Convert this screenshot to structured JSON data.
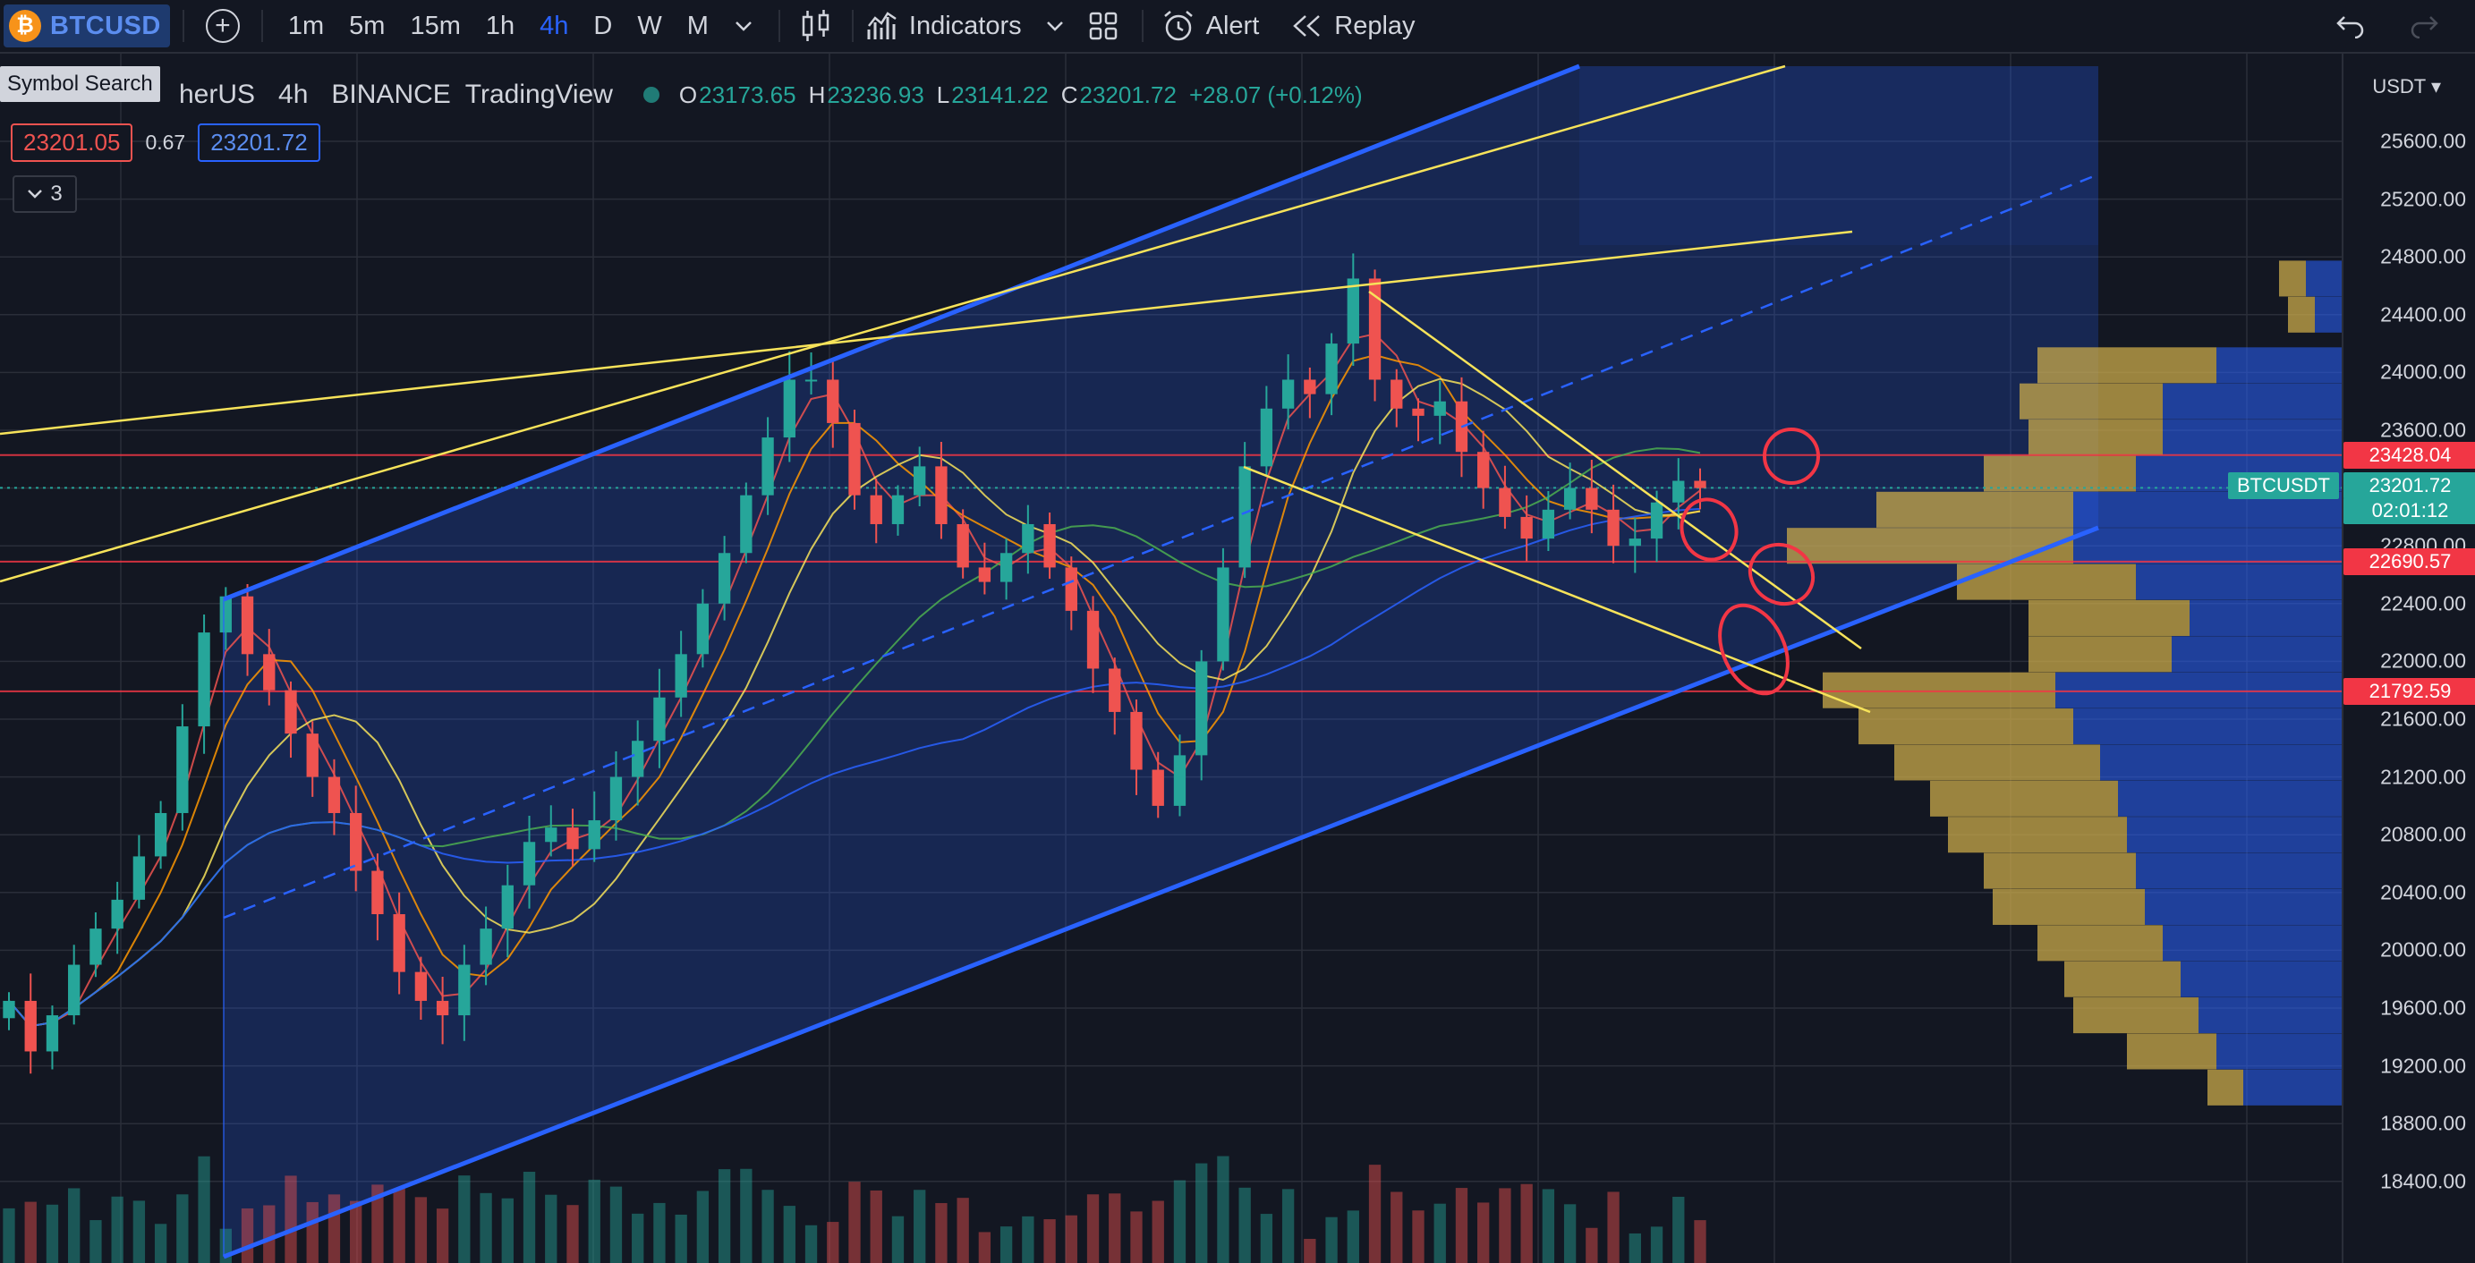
{
  "toolbar": {
    "symbol": "BTCUSD",
    "coin_glyph": "₿",
    "intervals": [
      "1m",
      "5m",
      "15m",
      "1h",
      "4h",
      "D",
      "W",
      "M"
    ],
    "active_interval": "4h",
    "indicators_label": "Indicators",
    "alert_label": "Alert",
    "replay_label": "Replay"
  },
  "tooltip": "Symbol Search",
  "legend": {
    "symbol_fragment": "herUS",
    "interval": "4h",
    "exchange": "BINANCE",
    "source": "TradingView",
    "o_label": "O",
    "o": "23173.65",
    "h_label": "H",
    "h": "23236.93",
    "l_label": "L",
    "l": "23141.22",
    "c_label": "C",
    "c": "23201.72",
    "change": "+28.07 (+0.12%)"
  },
  "quote": {
    "sell": "23201.05",
    "spread": "0.67",
    "buy": "23201.72"
  },
  "indicator_count": "3",
  "price_axis": {
    "currency": "USDT",
    "labels": [
      "25600.00",
      "25200.00",
      "24800.00",
      "24400.00",
      "24000.00",
      "23600.00",
      "23200.00",
      "22800.00",
      "22400.00",
      "22000.00",
      "21600.00",
      "21200.00",
      "20800.00",
      "20400.00",
      "20000.00",
      "19600.00",
      "19200.00",
      "18800.00",
      "18400.00"
    ],
    "tags": [
      {
        "value": "23428.04",
        "color": "#f23645"
      },
      {
        "value": "23201.72",
        "color": "#26a69a"
      },
      {
        "value": "02:01:12",
        "color": "#26a69a"
      },
      {
        "value": "22690.57",
        "color": "#f23645"
      },
      {
        "value": "21792.59",
        "color": "#f23645"
      }
    ],
    "symbol_tag": "BTCUSDT"
  },
  "colors": {
    "up": "#26a69a",
    "down": "#ef5350",
    "channel": "#2962ff",
    "trend": "#f7e35a",
    "level": "#f23645",
    "bg": "#131722"
  },
  "chart_data": {
    "type": "candlestick",
    "ylim": [
      18200,
      25900
    ],
    "horizontal_levels": [
      23428.04,
      22690.57,
      21792.59
    ],
    "last_price": 23201.72,
    "closes": [
      19650,
      19300,
      19550,
      19900,
      20150,
      20350,
      20650,
      20950,
      21550,
      22200,
      22450,
      22050,
      21800,
      21500,
      21200,
      20950,
      20550,
      20250,
      19850,
      19650,
      19550,
      19900,
      20150,
      20450,
      20750,
      20850,
      20700,
      20900,
      21200,
      21450,
      21750,
      22050,
      22400,
      22750,
      23150,
      23550,
      23950,
      23950,
      23650,
      23150,
      22950,
      23150,
      23350,
      22950,
      22650,
      22550,
      22750,
      22950,
      22650,
      22350,
      21950,
      21650,
      21250,
      21000,
      21350,
      22000,
      22650,
      23350,
      23750,
      23950,
      23850,
      24200,
      24650,
      23950,
      23750,
      23700,
      23800,
      23450,
      23200,
      23000,
      22850,
      23050,
      23200,
      23050,
      22800,
      22850,
      23100,
      23250,
      23200
    ],
    "profile_levels": [
      24650,
      24400,
      24050,
      23800,
      23550,
      23300,
      23050,
      22800,
      22550,
      22300,
      22050,
      21800,
      21550,
      21300,
      21050,
      20800,
      20550,
      20300,
      20050,
      19800,
      19550,
      19300,
      19050
    ],
    "profile_up": [
      30,
      30,
      200,
      160,
      150,
      170,
      220,
      320,
      200,
      180,
      160,
      260,
      240,
      230,
      210,
      200,
      170,
      170,
      140,
      130,
      140,
      100,
      40
    ],
    "profile_down": [
      40,
      30,
      140,
      200,
      200,
      230,
      300,
      300,
      230,
      170,
      190,
      320,
      300,
      270,
      250,
      240,
      230,
      220,
      200,
      180,
      160,
      140,
      110
    ],
    "annotations": [
      "ascending channel",
      "trend lines",
      "moving averages",
      "volume profile",
      "volume bars",
      "circled targets"
    ]
  }
}
